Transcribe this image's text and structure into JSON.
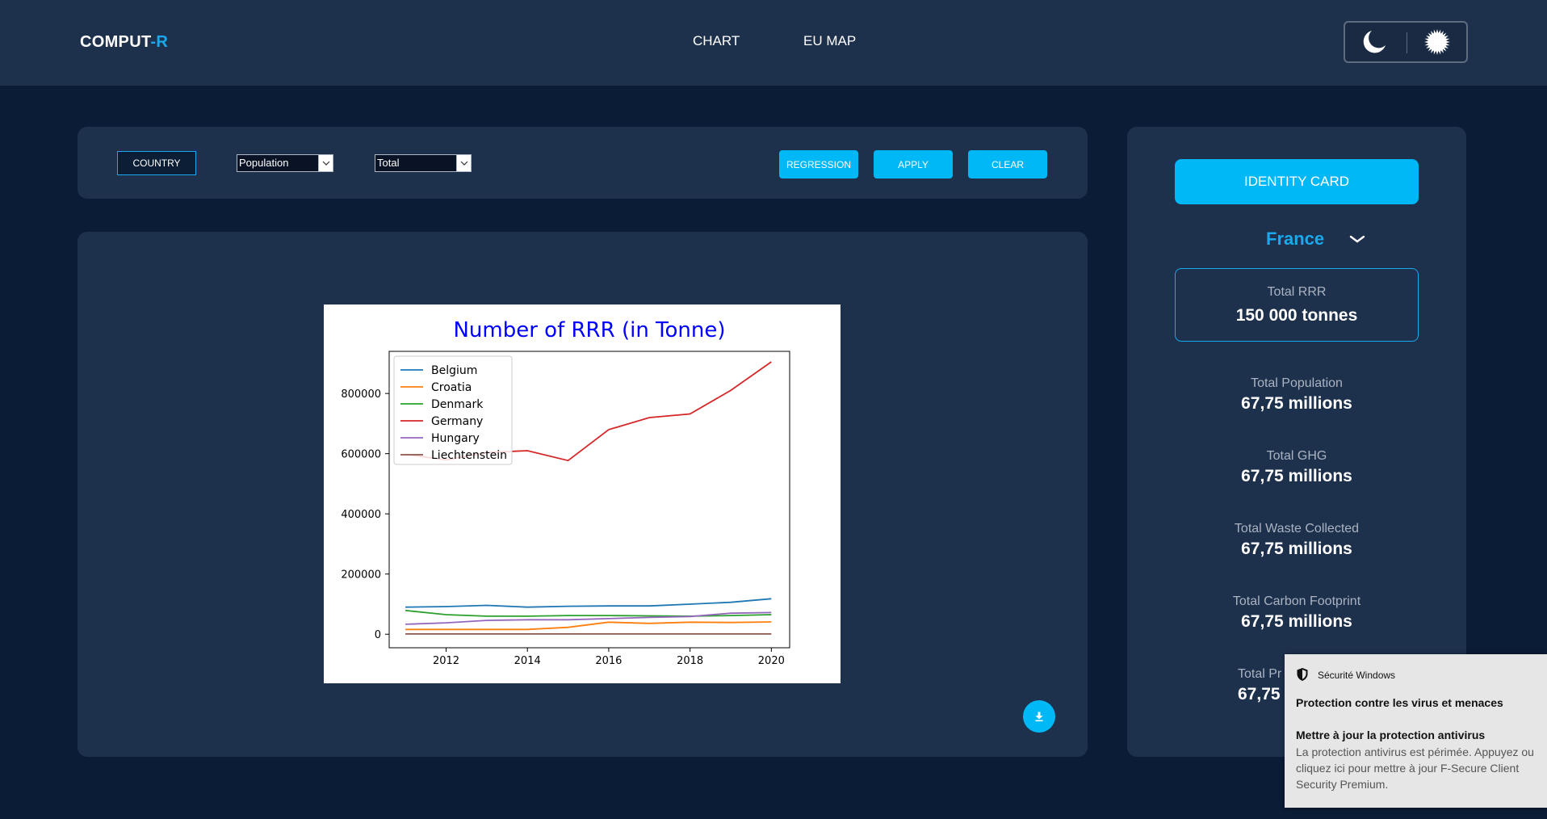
{
  "brand": {
    "prefix": "COMPUT",
    "suffix": "-R"
  },
  "nav": {
    "chart": "CHART",
    "eu_map": "EU MAP"
  },
  "theme": {
    "dark_icon": "moon-icon",
    "light_icon": "sun-icon"
  },
  "filters": {
    "country_label": "COUNTRY",
    "indicator_value": "Population",
    "aggregation_value": "Total",
    "regression_label": "REGRESSION",
    "apply_label": "APPLY",
    "clear_label": "CLEAR"
  },
  "colors": {
    "accent": "#00b8f5",
    "background": "#0b1c36",
    "panel": "#1e314c"
  },
  "chart_data": {
    "type": "line",
    "title": "Number of RRR (in Tonne)",
    "xlabel": "",
    "ylabel": "",
    "x": [
      2011,
      2012,
      2013,
      2014,
      2015,
      2016,
      2017,
      2018,
      2019,
      2020
    ],
    "xlim": [
      2010.6,
      2020.45
    ],
    "ylim": [
      -45000,
      940000
    ],
    "xticks": [
      "2012",
      "2014",
      "2016",
      "2018",
      "2020"
    ],
    "yticks": [
      "0",
      "200000",
      "400000",
      "600000",
      "800000"
    ],
    "legend_position": "upper-left",
    "series": [
      {
        "name": "Belgium",
        "color": "#1f77b4",
        "values": [
          90000,
          92000,
          96000,
          90000,
          93000,
          94000,
          94000,
          100000,
          106000,
          118000
        ]
      },
      {
        "name": "Croatia",
        "color": "#ff7f0e",
        "values": [
          16000,
          16000,
          16000,
          16000,
          23000,
          40000,
          36000,
          40000,
          39000,
          41000
        ]
      },
      {
        "name": "Denmark",
        "color": "#2ca02c",
        "values": [
          79000,
          65000,
          60000,
          60000,
          62000,
          62000,
          61000,
          60000,
          62000,
          65000
        ]
      },
      {
        "name": "Germany",
        "color": "#d62728",
        "values": [
          598000,
          579000,
          604000,
          610000,
          577000,
          680000,
          720000,
          732000,
          810000,
          905000
        ]
      },
      {
        "name": "Hungary",
        "color": "#9467bd",
        "values": [
          33000,
          38000,
          46000,
          48000,
          48000,
          52000,
          56000,
          59000,
          70000,
          72000
        ]
      },
      {
        "name": "Liechtenstein",
        "color": "#8c564b",
        "values": [
          1000,
          1000,
          1000,
          1000,
          1000,
          1000,
          1000,
          1000,
          1000,
          1000
        ]
      }
    ]
  },
  "identity": {
    "button_label": "IDENTITY CARD",
    "country": "France",
    "rrr": {
      "label": "Total RRR",
      "value": "150 000 tonnes"
    },
    "stats": [
      {
        "label": "Total Population",
        "value": "67,75 millions"
      },
      {
        "label": "Total GHG",
        "value": "67,75 millions"
      },
      {
        "label": "Total Waste Collected",
        "value": "67,75 millions"
      },
      {
        "label": "Total Carbon Footprint",
        "value": "67,75 millions"
      },
      {
        "label": "Total Pr",
        "value": "67,75"
      }
    ]
  },
  "notification": {
    "app": "Sécurité Windows",
    "title": "Protection contre les virus et menaces",
    "heading": "Mettre à jour la protection antivirus",
    "body": "La protection antivirus est périmée. Appuyez ou cliquez ici pour mettre à jour F-Secure Client Security Premium."
  }
}
